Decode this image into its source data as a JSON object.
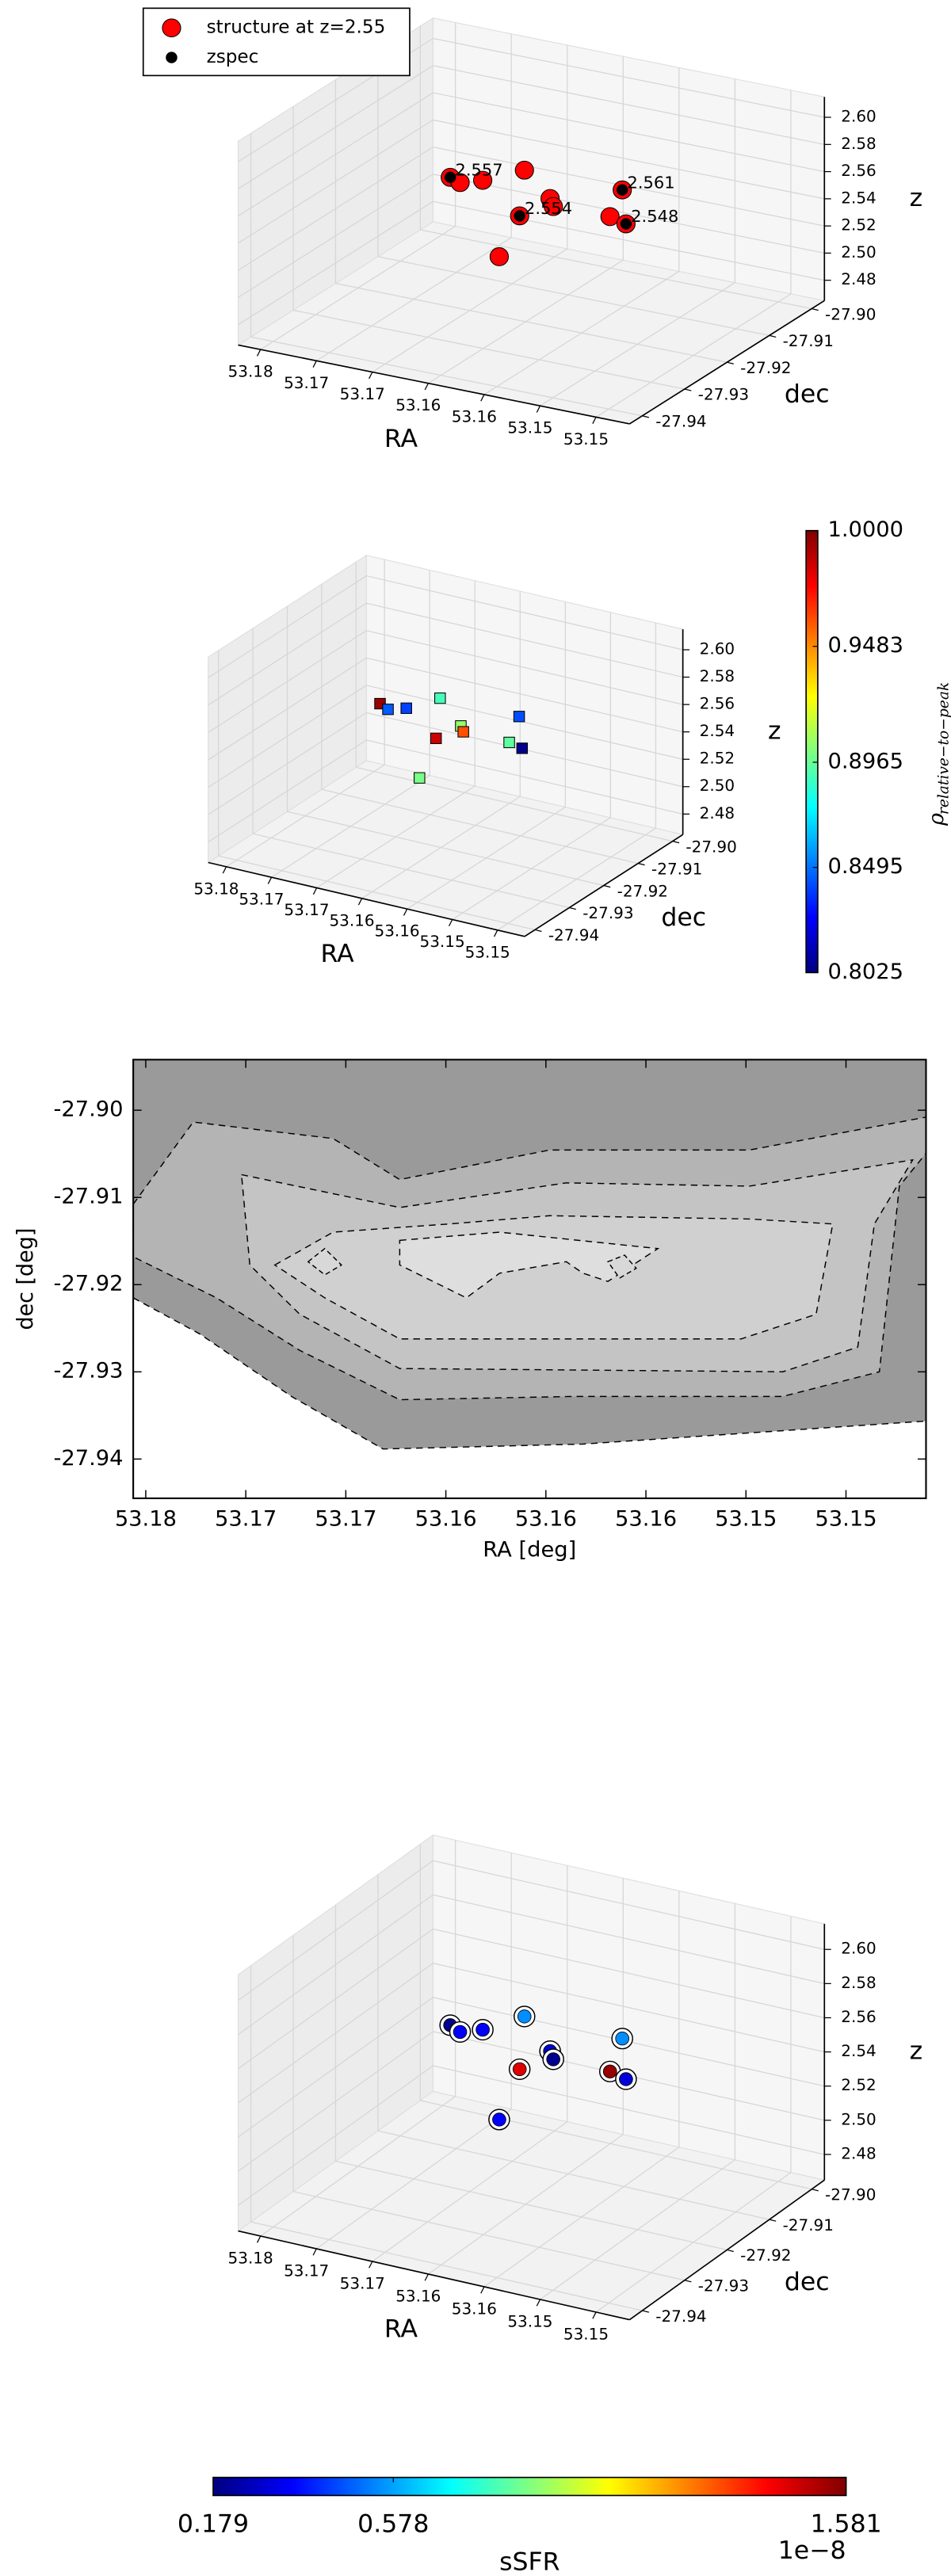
{
  "chart_data": [
    {
      "type": "scatter3d",
      "xlabel": "RA",
      "ylabel": "dec",
      "zlabel": "z",
      "xlim": [
        53.182,
        53.147
      ],
      "ylim": [
        -27.943,
        -27.897
      ],
      "zlim": [
        2.465,
        2.615
      ],
      "xticks": [
        53.18,
        {
          "value": 53.175,
          "label": "53.17"
        },
        53.17,
        {
          "value": 53.165,
          "label": "53.16"
        },
        53.16,
        {
          "value": 53.155,
          "label": "53.15"
        },
        53.15
      ],
      "yticks": [
        {
          "value": -27.9,
          "label": "-27.90"
        },
        -27.91,
        -27.92,
        -27.93,
        -27.94
      ],
      "zticks": [
        2.48,
        {
          "value": 2.5,
          "label": "2.50"
        },
        2.52,
        2.54,
        2.56,
        2.58,
        {
          "value": 2.6,
          "label": "2.60"
        }
      ],
      "legend": "upper left",
      "series": [
        {
          "name": "structure at z=2.55",
          "color": "#ff0000",
          "x": [
            53.1722,
            53.1717,
            53.1707,
            53.1675,
            53.1638,
            53.1649,
            53.1631,
            53.1643,
            53.1589,
            53.1586,
            53.1566
          ],
          "y": [
            -27.9188,
            -27.9178,
            -27.9151,
            -27.9137,
            -27.9246,
            -27.9145,
            -27.9185,
            -27.9281,
            -27.9162,
            -27.9141,
            -27.9185
          ],
          "values": [
            2.557,
            2.552,
            2.55,
            2.56,
            2.554,
            2.545,
            2.55,
            2.53,
            2.545,
            2.561,
            2.548
          ]
        },
        {
          "name": "zspec",
          "color": "#000000",
          "x": [
            53.1722,
            53.1638,
            53.1586,
            53.1566
          ],
          "y": [
            -27.9188,
            -27.9246,
            -27.9141,
            -27.9185
          ],
          "values": [
            2.557,
            2.554,
            2.561,
            2.548
          ]
        }
      ]
    },
    {
      "type": "scatter3d",
      "xlabel": "RA",
      "ylabel": "dec",
      "zlabel": "z",
      "xlim": [
        53.182,
        53.147
      ],
      "ylim": [
        -27.943,
        -27.897
      ],
      "zlim": [
        2.465,
        2.615
      ],
      "xticks": [
        53.18,
        {
          "value": 53.175,
          "label": "53.17"
        },
        53.17,
        {
          "value": 53.165,
          "label": "53.16"
        },
        53.16,
        {
          "value": 53.155,
          "label": "53.15"
        },
        53.15
      ],
      "yticks": [
        {
          "value": -27.9,
          "label": "-27.90"
        },
        -27.91,
        -27.92,
        -27.93,
        -27.94
      ],
      "zticks": [
        2.48,
        {
          "value": 2.5,
          "label": "2.50"
        },
        2.52,
        2.54,
        2.56,
        2.58,
        {
          "value": 2.6,
          "label": "2.60"
        }
      ],
      "marker": "square",
      "colormap": "jet",
      "colorbar_orientation": "vertical",
      "colorbar_label": "ρ",
      "colorbar_label_subscript": "relative−to−peak",
      "colorbar_lim": [
        0.8025,
        1
      ],
      "colorbar_ticks": [
        0.8025,
        0.8495,
        0.8965,
        0.9483,
        {
          "value": 1,
          "label": "1.0000"
        }
      ],
      "series": [
        {
          "x": [
            53.1722,
            53.1717,
            53.1707,
            53.1675,
            53.1638,
            53.1649,
            53.1631,
            53.1643,
            53.1589,
            53.1586,
            53.1566
          ],
          "y": [
            -27.9188,
            -27.9178,
            -27.9151,
            -27.9137,
            -27.9246,
            -27.9145,
            -27.9185,
            -27.9281,
            -27.9162,
            -27.9141,
            -27.9185
          ],
          "values": [
            2.557,
            2.552,
            2.55,
            2.56,
            2.554,
            2.545,
            2.55,
            2.53,
            2.545,
            2.561,
            2.548
          ],
          "color_values": [
            0.995,
            0.845,
            0.84,
            0.89,
            0.985,
            0.905,
            0.96,
            0.9,
            0.895,
            0.842,
            0.805
          ]
        }
      ]
    },
    {
      "type": "contour",
      "xlabel": "RA [deg]",
      "ylabel": "dec [deg]",
      "xlim": [
        53.1765,
        53.1448
      ],
      "ylim": [
        -27.9445,
        -27.8942
      ],
      "xticks": [
        {
          "value": 53.176,
          "label": "53.18"
        },
        {
          "value": 53.172,
          "label": "53.17"
        },
        {
          "value": 53.168,
          "label": "53.17"
        },
        {
          "value": 53.164,
          "label": "53.16"
        },
        53.16,
        {
          "value": 53.156,
          "label": "53.16"
        },
        {
          "value": 53.152,
          "label": "53.15"
        },
        {
          "value": 53.148,
          "label": "53.15"
        }
      ],
      "yticks": [
        {
          "value": -27.9,
          "label": "-27.90"
        },
        -27.91,
        -27.92,
        -27.93,
        -27.94
      ]
    },
    {
      "type": "scatter3d",
      "xlabel": "RA",
      "ylabel": "dec",
      "zlabel": "z",
      "xlim": [
        53.182,
        53.147
      ],
      "ylim": [
        -27.943,
        -27.897
      ],
      "zlim": [
        2.465,
        2.615
      ],
      "xticks": [
        53.18,
        {
          "value": 53.175,
          "label": "53.17"
        },
        53.17,
        {
          "value": 53.165,
          "label": "53.16"
        },
        53.16,
        {
          "value": 53.155,
          "label": "53.15"
        },
        53.15
      ],
      "yticks": [
        {
          "value": -27.9,
          "label": "-27.90"
        },
        -27.91,
        -27.92,
        -27.93,
        -27.94
      ],
      "zticks": [
        2.48,
        {
          "value": 2.5,
          "label": "2.50"
        },
        2.52,
        2.54,
        2.56,
        2.58,
        {
          "value": 2.6,
          "label": "2.60"
        }
      ],
      "marker": "circle",
      "colormap": "jet",
      "colorbar_orientation": "horizontal",
      "colorbar_label": "sSFR",
      "colorbar_offset": "1e−8",
      "colorbar_lim": [
        0.179,
        1.581
      ],
      "colorbar_ticks": [
        0.179,
        0.578,
        1.581
      ],
      "series": [
        {
          "x": [
            53.1722,
            53.1717,
            53.1707,
            53.1675,
            53.1638,
            53.1649,
            53.1631,
            53.1643,
            53.1589,
            53.1586,
            53.1566
          ],
          "y": [
            -27.9188,
            -27.9178,
            -27.9151,
            -27.9137,
            -27.9246,
            -27.9145,
            -27.9185,
            -27.9281,
            -27.9162,
            -27.9141,
            -27.9185
          ],
          "values": [
            2.557,
            2.552,
            2.55,
            2.56,
            2.554,
            2.545,
            2.55,
            2.53,
            2.545,
            2.561,
            2.548
          ],
          "color_values": [
            0.2,
            0.35,
            0.35,
            0.55,
            1.45,
            0.3,
            0.2,
            0.35,
            1.55,
            0.55,
            0.3
          ]
        }
      ]
    }
  ]
}
